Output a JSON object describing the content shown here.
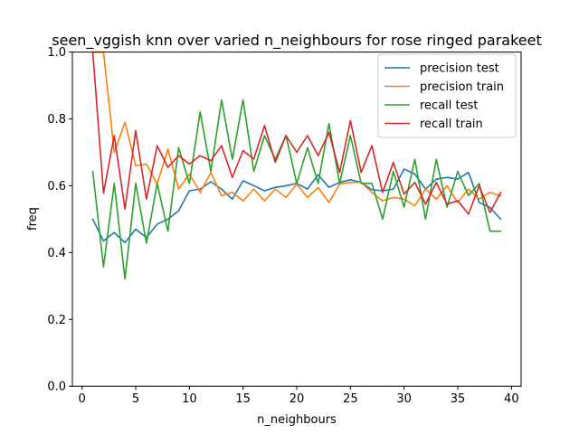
{
  "chart_data": {
    "type": "line",
    "title": "seen_vggish knn over varied n_neighbours for rose ringed parakeet",
    "xlabel": "n_neighbours",
    "ylabel": "freq",
    "xlim": [
      -0.9,
      40.9
    ],
    "ylim": [
      0.0,
      1.0
    ],
    "xticks": [
      0,
      5,
      10,
      15,
      20,
      25,
      30,
      35,
      40
    ],
    "yticks": [
      0.0,
      0.2,
      0.4,
      0.6,
      0.8,
      1.0
    ],
    "xtick_labels": [
      "0",
      "5",
      "10",
      "15",
      "20",
      "25",
      "30",
      "35",
      "40"
    ],
    "ytick_labels": [
      "0.0",
      "0.2",
      "0.4",
      "0.6",
      "0.8",
      "1.0"
    ],
    "grid": false,
    "legend_position": "upper right",
    "x": [
      1,
      2,
      3,
      4,
      5,
      6,
      7,
      8,
      9,
      10,
      11,
      12,
      13,
      14,
      15,
      16,
      17,
      18,
      19,
      20,
      21,
      22,
      23,
      24,
      25,
      26,
      27,
      28,
      29,
      30,
      31,
      32,
      33,
      34,
      35,
      36,
      37,
      38,
      39
    ],
    "series": [
      {
        "name": "precision test",
        "color": "#1f77b4",
        "values": [
          0.5,
          0.435,
          0.46,
          0.43,
          0.47,
          0.445,
          0.485,
          0.5,
          0.525,
          0.585,
          0.59,
          0.612,
          0.59,
          0.56,
          0.615,
          0.6,
          0.585,
          0.595,
          0.6,
          0.607,
          0.59,
          0.633,
          0.595,
          0.61,
          0.618,
          0.61,
          0.588,
          0.585,
          0.59,
          0.65,
          0.635,
          0.59,
          0.62,
          0.625,
          0.62,
          0.64,
          0.55,
          0.535,
          0.5
        ]
      },
      {
        "name": "precision train",
        "color": "#ff7f0e",
        "values": [
          1.0,
          1.0,
          0.7,
          0.79,
          0.66,
          0.665,
          0.605,
          0.71,
          0.59,
          0.635,
          0.58,
          0.64,
          0.57,
          0.58,
          0.555,
          0.59,
          0.555,
          0.59,
          0.565,
          0.605,
          0.565,
          0.595,
          0.55,
          0.605,
          0.61,
          0.61,
          0.58,
          0.555,
          0.565,
          0.56,
          0.54,
          0.59,
          0.56,
          0.6,
          0.55,
          0.59,
          0.56,
          0.58,
          0.57
        ]
      },
      {
        "name": "recall test",
        "color": "#2ca02c",
        "values": [
          0.643,
          0.357,
          0.607,
          0.321,
          0.607,
          0.428,
          0.607,
          0.464,
          0.714,
          0.607,
          0.821,
          0.643,
          0.857,
          0.679,
          0.857,
          0.643,
          0.75,
          0.679,
          0.75,
          0.607,
          0.714,
          0.607,
          0.786,
          0.607,
          0.75,
          0.607,
          0.607,
          0.5,
          0.643,
          0.536,
          0.679,
          0.5,
          0.679,
          0.536,
          0.643,
          0.571,
          0.607,
          0.464,
          0.464
        ]
      },
      {
        "name": "recall train",
        "color": "#d62728",
        "values": [
          1.0,
          0.578,
          0.75,
          0.53,
          0.765,
          0.56,
          0.72,
          0.655,
          0.69,
          0.665,
          0.69,
          0.675,
          0.72,
          0.625,
          0.705,
          0.68,
          0.78,
          0.67,
          0.75,
          0.7,
          0.75,
          0.69,
          0.76,
          0.64,
          0.795,
          0.64,
          0.72,
          0.58,
          0.67,
          0.575,
          0.61,
          0.545,
          0.61,
          0.545,
          0.555,
          0.515,
          0.6,
          0.52,
          0.58
        ]
      }
    ]
  }
}
